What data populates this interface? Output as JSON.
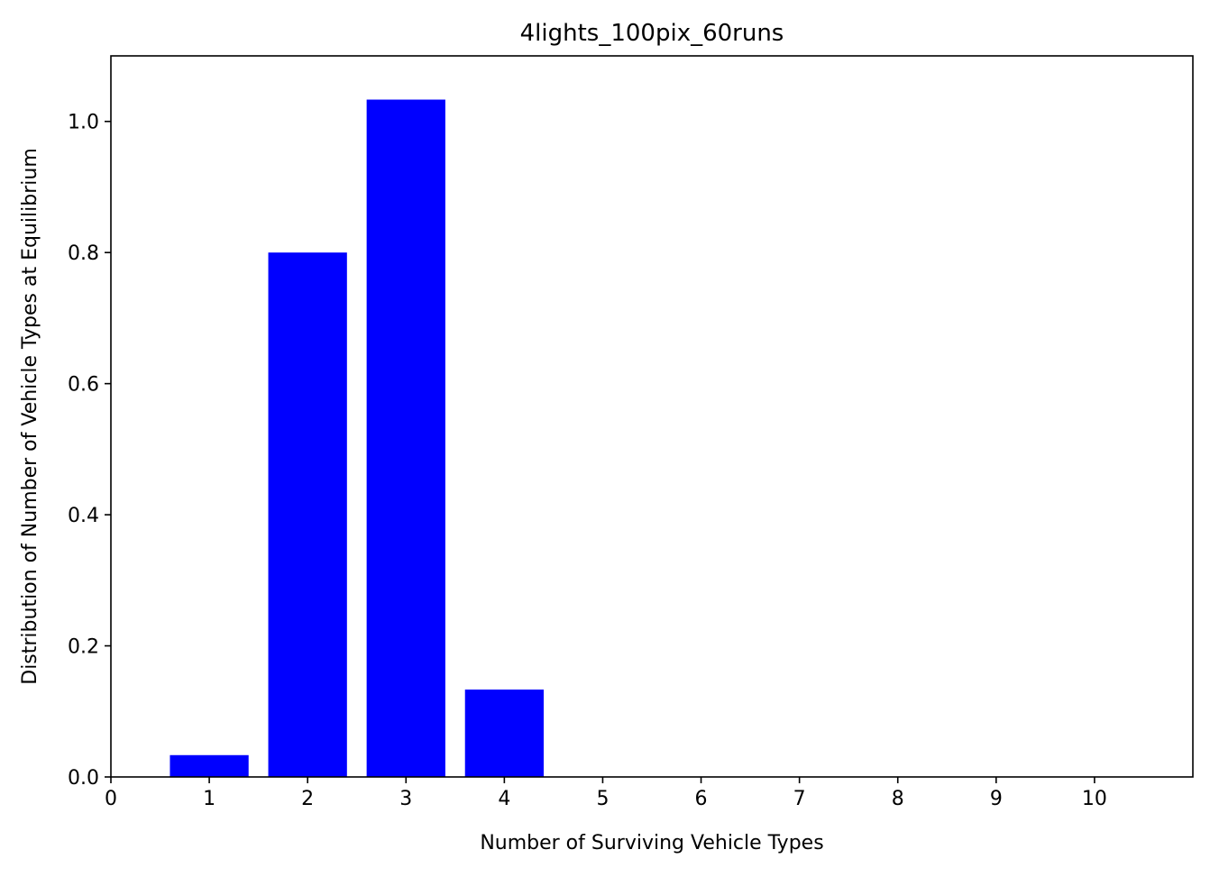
{
  "chart_data": {
    "type": "bar",
    "title": "4lights_100pix_60runs",
    "xlabel": "Number of Surviving Vehicle Types",
    "ylabel": "Distribution of Number of Vehicle Types at Equilibrium",
    "categories": [
      1,
      2,
      3,
      4,
      5,
      6,
      7,
      8,
      9,
      10
    ],
    "values": [
      0.0333,
      0.8,
      1.0333,
      0.1333,
      0,
      0,
      0,
      0,
      0,
      0
    ],
    "bar_width": 0.8,
    "bar_color": "#0000ff",
    "xlim": [
      0,
      11
    ],
    "ylim": [
      0,
      1.1
    ],
    "xticks": [
      "0",
      "1",
      "2",
      "3",
      "4",
      "5",
      "6",
      "7",
      "8",
      "9",
      "10"
    ],
    "yticks": [
      "0.0",
      "0.2",
      "0.4",
      "0.6",
      "0.8",
      "1.0"
    ],
    "grid": false,
    "legend": "none"
  }
}
